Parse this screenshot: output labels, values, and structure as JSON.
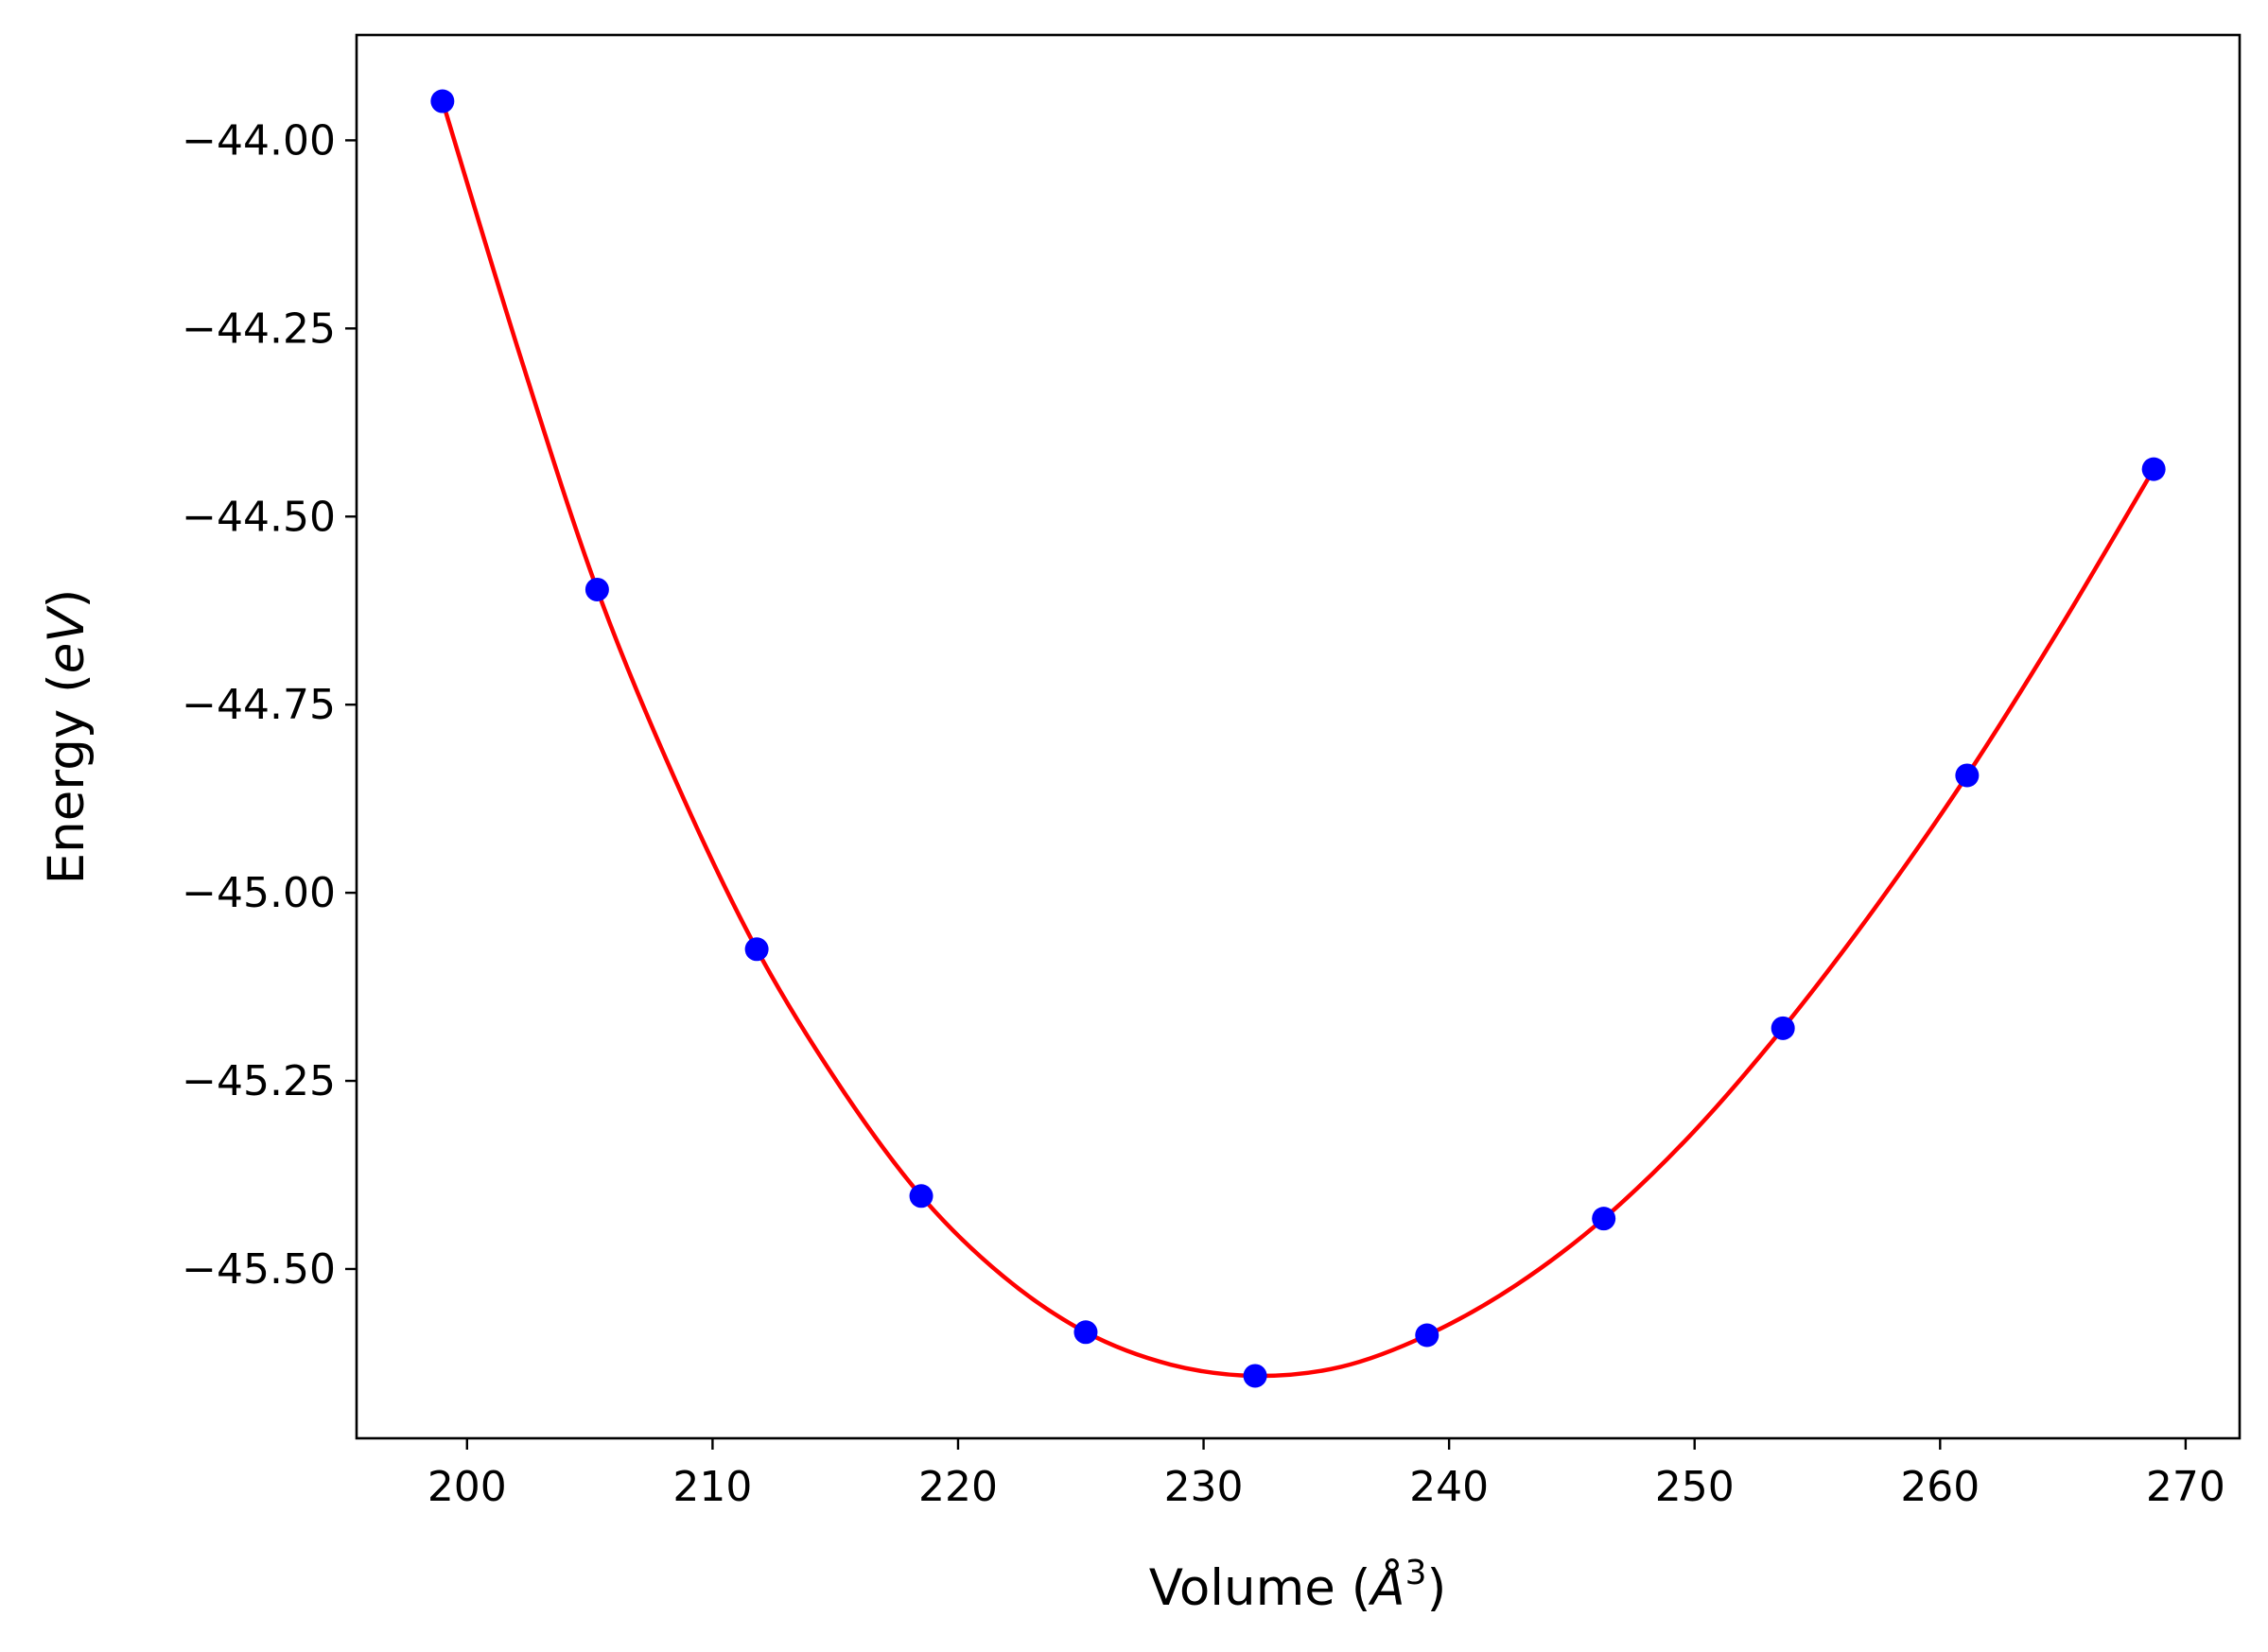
{
  "chart_data": {
    "type": "scatter",
    "title": "",
    "xlabel": {
      "prefix": "Volume (",
      "symbol": "Å",
      "sup": "3",
      "suffix": ")"
    },
    "ylabel": {
      "prefix": "Energy (",
      "unit": "eV",
      "suffix": ")"
    },
    "xlim": [
      195.5,
      272.2
    ],
    "ylim": [
      -45.725,
      -43.86
    ],
    "xticks": [
      200,
      210,
      220,
      230,
      240,
      250,
      260,
      270
    ],
    "yticks": [
      -44.0,
      -44.25,
      -44.5,
      -44.75,
      -45.0,
      -45.25,
      -45.5
    ],
    "ytick_labels": [
      "−44.00",
      "−44.25",
      "−44.50",
      "−44.75",
      "−45.00",
      "−45.25",
      "−45.50"
    ],
    "grid": false,
    "series": [
      {
        "kind": "points",
        "color": "#0000ff",
        "x": [
          199.0,
          205.3,
          211.8,
          218.5,
          225.2,
          232.1,
          239.1,
          246.3,
          253.6,
          261.1,
          268.7
        ],
        "y": [
          -43.948,
          -44.597,
          -45.075,
          -45.403,
          -45.584,
          -45.642,
          -45.588,
          -45.433,
          -45.18,
          -44.844,
          -44.437
        ]
      },
      {
        "kind": "fit-curve",
        "color": "#ff0000",
        "x": [
          199.0,
          202.15,
          205.3,
          208.55,
          211.8,
          215.15,
          218.5,
          221.85,
          225.2,
          228.65,
          232.1,
          235.6,
          239.1,
          242.7,
          246.3,
          249.95,
          253.6,
          257.35,
          261.1,
          264.9,
          268.7
        ],
        "y": [
          -43.948,
          -44.285,
          -44.597,
          -44.855,
          -45.075,
          -45.255,
          -45.403,
          -45.51,
          -45.584,
          -45.627,
          -45.642,
          -45.63,
          -45.588,
          -45.522,
          -45.433,
          -45.318,
          -45.18,
          -45.02,
          -44.844,
          -44.647,
          -44.437
        ]
      }
    ]
  }
}
